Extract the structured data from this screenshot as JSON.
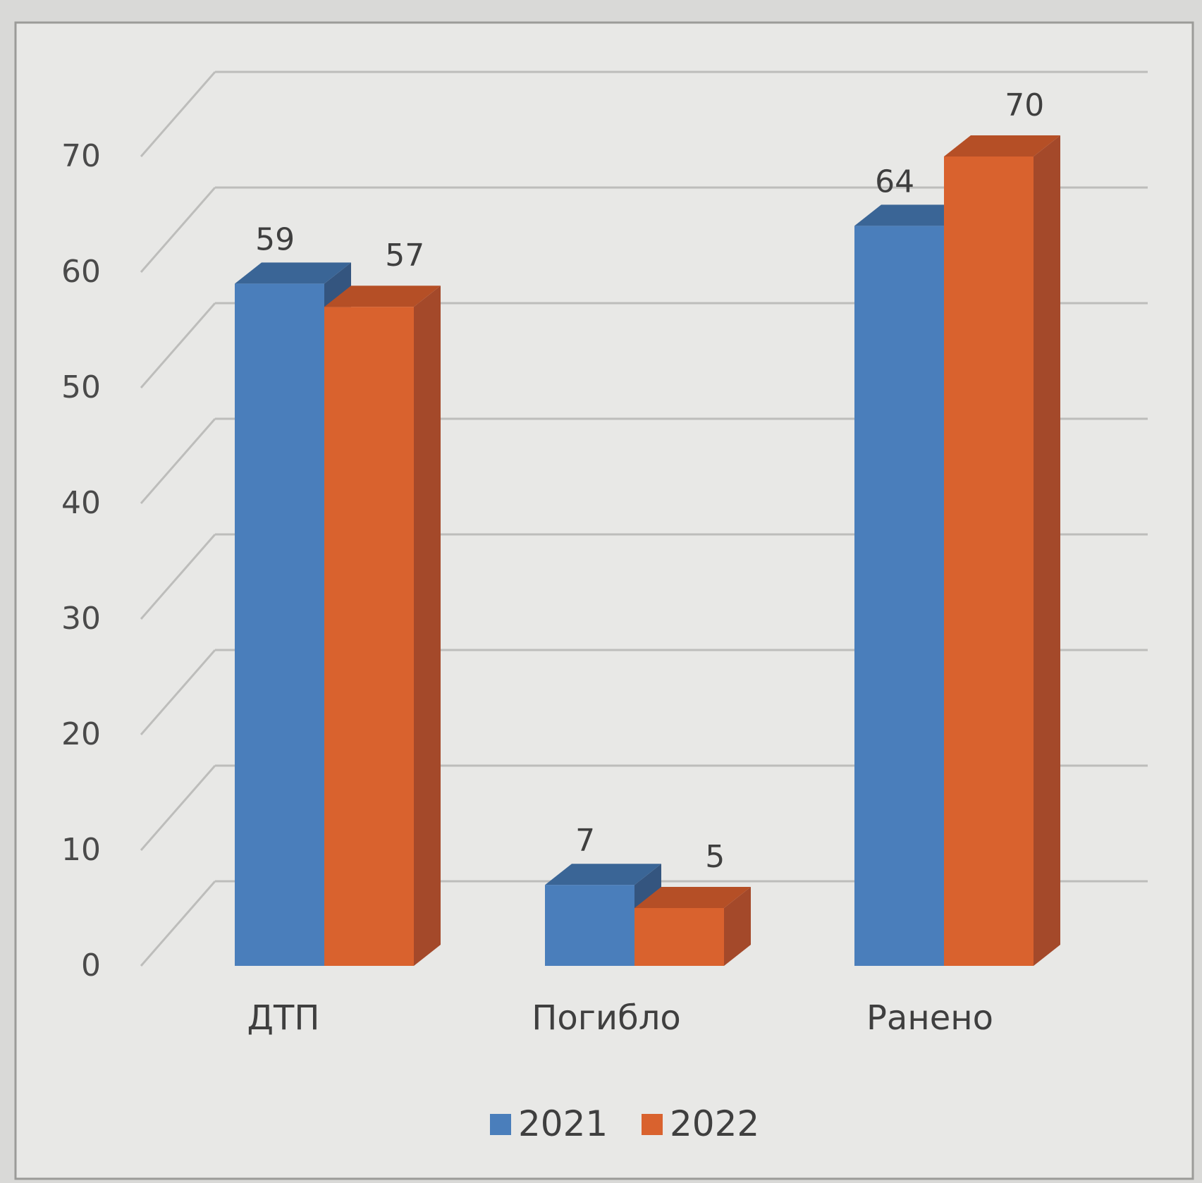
{
  "chart_data": {
    "type": "bar",
    "categories": [
      "ДТП",
      "Погибло",
      "Ранено"
    ],
    "series": [
      {
        "name": "2021",
        "values": [
          59,
          7,
          64
        ],
        "color": "#4a7ebb",
        "top_color": "#3a6596",
        "side_color": "#34557f"
      },
      {
        "name": "2022",
        "values": [
          57,
          5,
          70
        ],
        "color": "#d9622e",
        "top_color": "#b54f26",
        "side_color": "#a4492a"
      }
    ],
    "ylim": [
      0,
      70
    ],
    "yticks": [
      0,
      10,
      20,
      30,
      40,
      50,
      60,
      70
    ],
    "grid": true,
    "legend_position": "bottom",
    "style": "3d-clustered-column",
    "colors": {
      "background": "#e8e8e6",
      "grid": "#bdbdbb",
      "border": "#9b9b98"
    }
  }
}
